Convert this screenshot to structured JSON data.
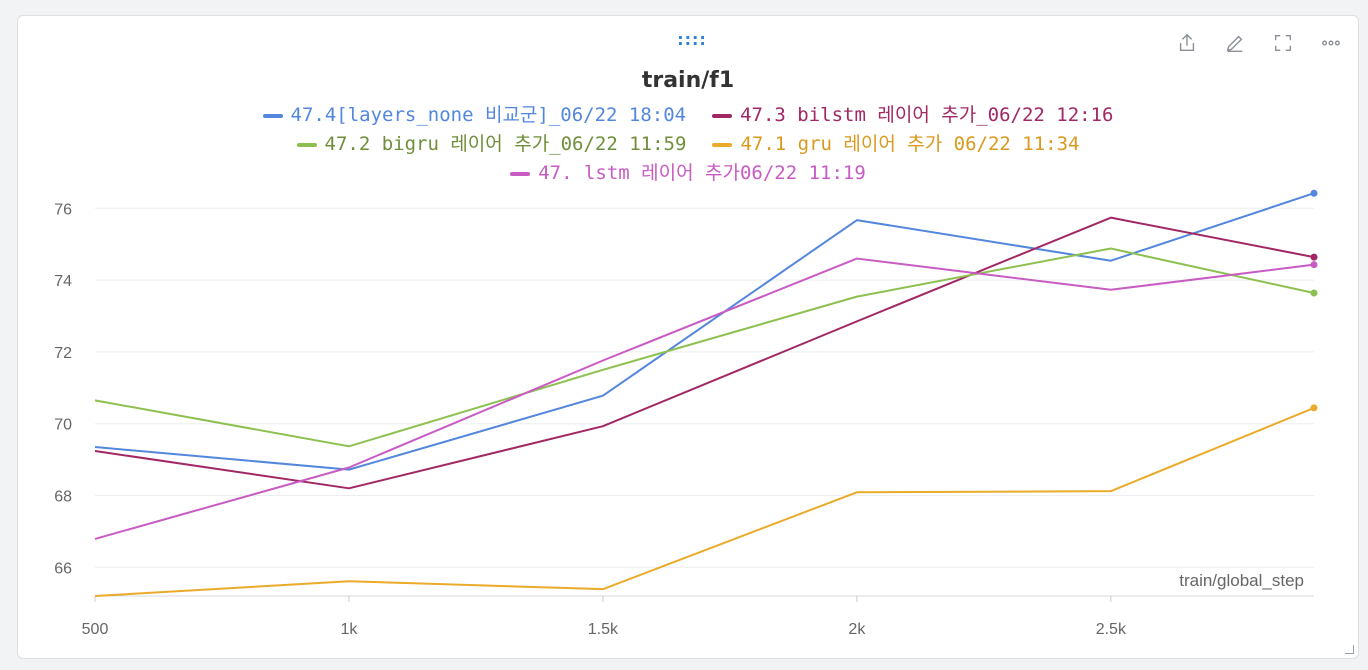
{
  "panel": {
    "drag_handle": "::::",
    "toolbar": [
      {
        "name": "share-icon"
      },
      {
        "name": "edit-icon"
      },
      {
        "name": "fullscreen-icon"
      },
      {
        "name": "more-icon"
      }
    ]
  },
  "chart_data": {
    "type": "line",
    "title": "train/f1",
    "xlabel": "train/global_step",
    "ylabel": "",
    "xlim": [
      500,
      2900
    ],
    "ylim": [
      65.2,
      76.9
    ],
    "x_ticks": [
      500,
      1000,
      1500,
      2000,
      2500
    ],
    "x_tick_labels": [
      "500",
      "1k",
      "1.5k",
      "2k",
      "2.5k"
    ],
    "y_ticks": [
      66,
      68,
      70,
      72,
      74,
      76
    ],
    "y_tick_labels": [
      "66",
      "68",
      "70",
      "72",
      "74",
      "76"
    ],
    "grid": true,
    "legend_position": "top",
    "x": [
      500,
      1000,
      1500,
      2000,
      2500,
      2900
    ],
    "series": [
      {
        "name": "47.4[layers_none 비교군]_06/22 18:04",
        "color": "#5387dd",
        "values": [
          69.35,
          68.72,
          70.78,
          75.67,
          74.54,
          76.42
        ]
      },
      {
        "name": "47.3 bilstm 레이어 추가_06/22 12:16",
        "color": "#a12864",
        "values": [
          69.24,
          68.2,
          69.93,
          72.85,
          75.74,
          74.64
        ]
      },
      {
        "name": "47.2 bigru 레이어 추가_06/22 11:59",
        "color": "#8dc050",
        "values": [
          70.65,
          69.37,
          71.5,
          73.54,
          74.88,
          73.64
        ]
      },
      {
        "name": "47.1 gru 레이어 추가 06/22 11:34",
        "color": "#eaaa2a",
        "values": [
          65.2,
          65.61,
          65.39,
          68.09,
          68.12,
          70.44
        ]
      },
      {
        "name": "47. lstm 레이어 추가06/22 11:19",
        "color": "#c85bc4",
        "values": [
          66.79,
          68.78,
          71.76,
          74.6,
          73.73,
          74.43
        ]
      }
    ]
  }
}
